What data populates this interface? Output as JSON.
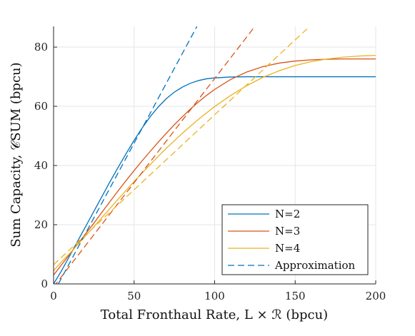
{
  "chart_data": {
    "type": "line",
    "xlabel": "Total Fronthaul Rate, L × ℛ (bpcu)",
    "ylabel": "Sum Capacity, 𝒞SUM (bpcu)",
    "xlim": [
      0,
      200
    ],
    "ylim": [
      0,
      87
    ],
    "xticks": [
      0,
      50,
      100,
      150,
      200
    ],
    "yticks": [
      0,
      20,
      40,
      60,
      80
    ],
    "grid": true,
    "legend_position": "bottom-right",
    "series": [
      {
        "name": "N=2",
        "color": "#0072BD",
        "style": "solid",
        "x": [
          0,
          5,
          10,
          15,
          20,
          25,
          30,
          35,
          40,
          45,
          50,
          55,
          60,
          65,
          70,
          75,
          80,
          85,
          90,
          95,
          100,
          110,
          120,
          130,
          140,
          150,
          160,
          170,
          180,
          190,
          200
        ],
        "y": [
          0,
          4.5,
          9.5,
          14.5,
          19.5,
          24.5,
          29.5,
          34.5,
          39.3,
          44,
          48.5,
          52.7,
          56.5,
          59.8,
          62.6,
          64.8,
          66.5,
          67.8,
          68.7,
          69.3,
          69.6,
          69.9,
          70,
          70,
          70,
          70,
          70,
          70,
          70,
          70,
          70
        ]
      },
      {
        "name": "N=3",
        "color": "#D95319",
        "style": "solid",
        "x": [
          0,
          5,
          10,
          15,
          20,
          25,
          30,
          35,
          40,
          45,
          50,
          55,
          60,
          65,
          70,
          75,
          80,
          85,
          90,
          95,
          100,
          110,
          120,
          130,
          140,
          150,
          160,
          170,
          180,
          190,
          200
        ],
        "y": [
          3,
          6.5,
          10,
          13.5,
          17,
          20.5,
          24.2,
          27.8,
          31.4,
          34.9,
          38.3,
          41.6,
          44.8,
          47.9,
          50.9,
          53.8,
          56.5,
          59.1,
          61.5,
          63.7,
          65.7,
          69.1,
          71.6,
          73.4,
          74.6,
          75.3,
          75.7,
          75.9,
          76,
          76,
          76
        ]
      },
      {
        "name": "N=4",
        "color": "#EDB120",
        "style": "solid",
        "x": [
          0,
          5,
          10,
          15,
          20,
          25,
          30,
          35,
          40,
          45,
          50,
          55,
          60,
          65,
          70,
          75,
          80,
          85,
          90,
          95,
          100,
          110,
          120,
          130,
          140,
          150,
          160,
          170,
          180,
          190,
          200
        ],
        "y": [
          4.5,
          7.5,
          10.3,
          13.3,
          16.3,
          19.3,
          22.4,
          25.5,
          28.6,
          31.6,
          34.6,
          37.5,
          40.3,
          43.1,
          45.8,
          48.4,
          50.9,
          53.3,
          55.6,
          57.8,
          59.9,
          63.7,
          67,
          69.8,
          72,
          73.8,
          75.1,
          76,
          76.6,
          77,
          77.2
        ]
      },
      {
        "name": "N=2 approximation",
        "color": "#0072BD",
        "style": "dashed",
        "x": [
          0,
          89
        ],
        "y": [
          -3,
          87
        ]
      },
      {
        "name": "N=3 approximation",
        "color": "#D95319",
        "style": "dashed",
        "x": [
          0,
          125
        ],
        "y": [
          -1,
          87
        ]
      },
      {
        "name": "N=4 approximation",
        "color": "#EDB120",
        "style": "dashed",
        "x": [
          0,
          158
        ],
        "y": [
          6.5,
          86.5
        ]
      }
    ],
    "legend": [
      {
        "label": "N=2",
        "color": "#0072BD",
        "style": "solid"
      },
      {
        "label": "N=3",
        "color": "#D95319",
        "style": "solid"
      },
      {
        "label": "N=4",
        "color": "#EDB120",
        "style": "solid"
      },
      {
        "label": "Approximation",
        "color": "#0072BD",
        "style": "dashed"
      }
    ]
  }
}
